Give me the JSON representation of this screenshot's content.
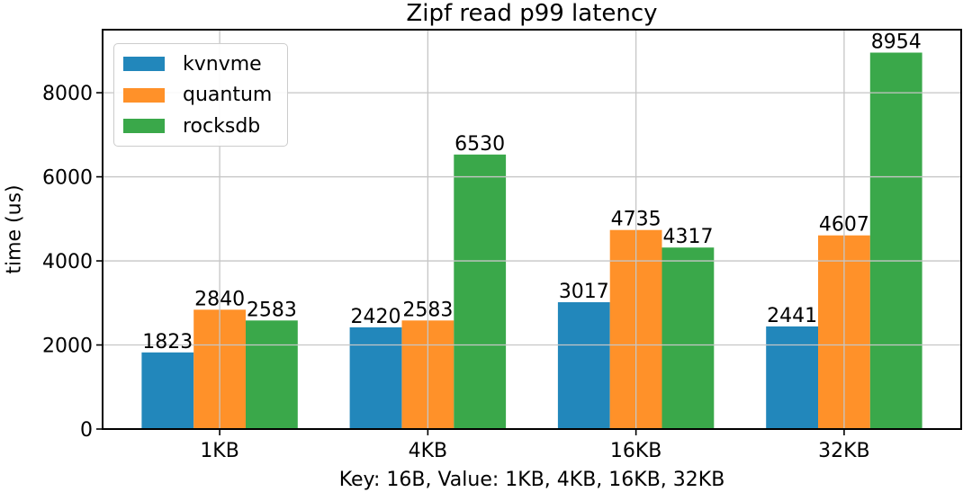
{
  "chart_data": {
    "type": "bar",
    "title": "Zipf read p99 latency",
    "xlabel": "Key: 16B, Value: 1KB, 4KB, 16KB, 32KB",
    "ylabel": "time (us)",
    "categories": [
      "1KB",
      "4KB",
      "16KB",
      "32KB"
    ],
    "series": [
      {
        "name": "kvnvme",
        "color": "#2287bb",
        "values": [
          1823,
          2420,
          3017,
          2441
        ]
      },
      {
        "name": "quantum",
        "color": "#ff9129",
        "values": [
          2840,
          2583,
          4735,
          4607
        ]
      },
      {
        "name": "rocksdb",
        "color": "#3aa84a",
        "values": [
          2583,
          6530,
          4317,
          8954
        ]
      }
    ],
    "yticks": [
      0,
      2000,
      4000,
      6000,
      8000
    ],
    "ylim": [
      0,
      9500
    ],
    "grid": true,
    "grid_color": "#c6c6c6",
    "grid_on_top": true,
    "legend_position": "upper left",
    "bar_labels": true,
    "spine_color": "#000000",
    "text_color": "#000000"
  }
}
